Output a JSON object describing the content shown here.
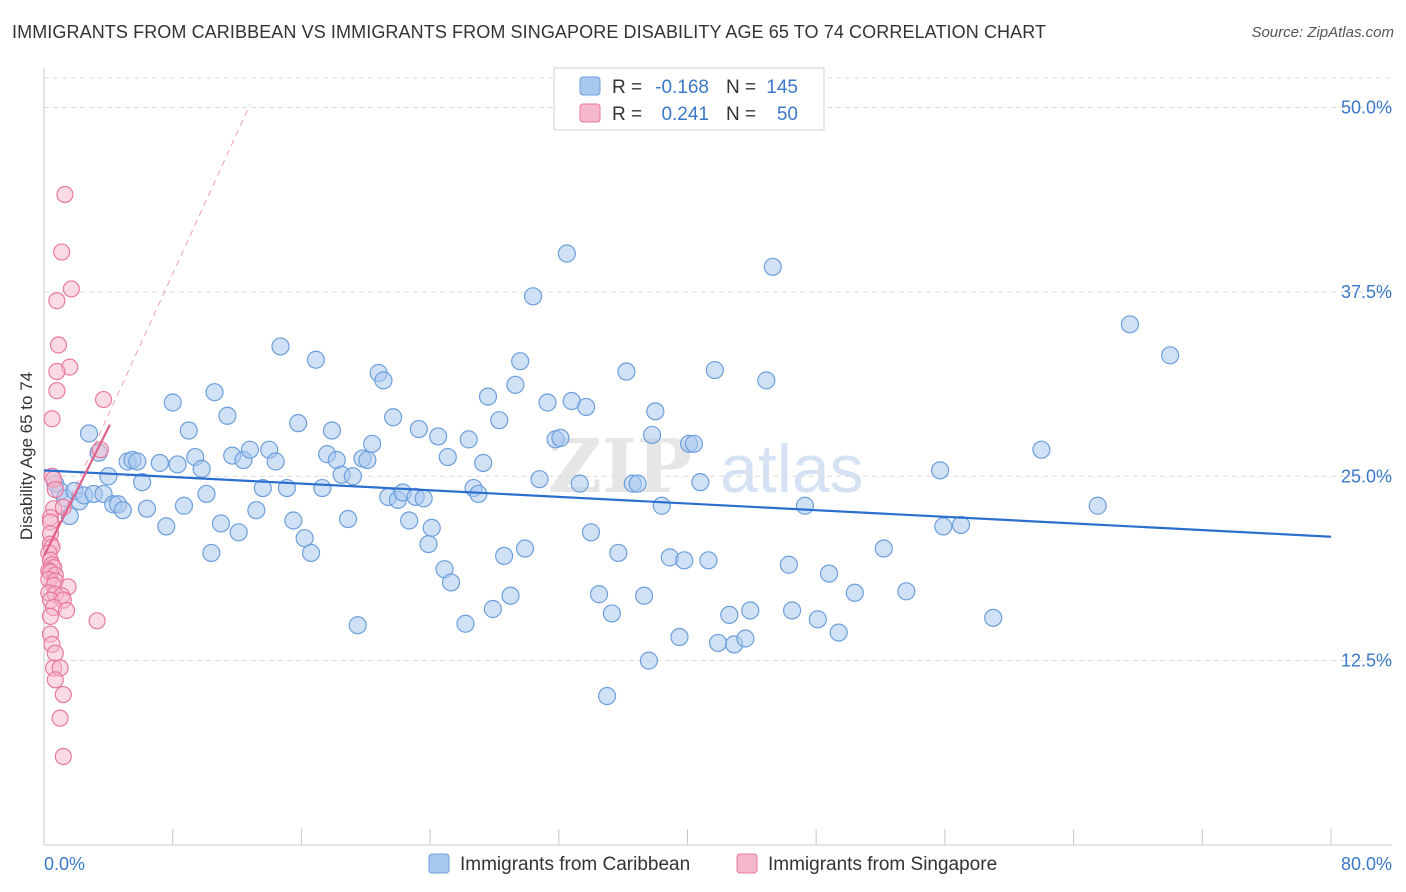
{
  "header": {
    "title": "IMMIGRANTS FROM CARIBBEAN VS IMMIGRANTS FROM SINGAPORE DISABILITY AGE 65 TO 74 CORRELATION CHART",
    "source": "Source: ZipAtlas.com"
  },
  "watermark": {
    "zip": "ZIP",
    "atlas": "atlas"
  },
  "legend_top": {
    "rows": [
      {
        "r_label": "R =",
        "r_value": "-0.168",
        "n_label": "N =",
        "n_value": "145"
      },
      {
        "r_label": "R =",
        "r_value": "0.241",
        "n_label": "N =",
        "n_value": "50"
      }
    ]
  },
  "colors": {
    "blue_fill": "#a9c8ef",
    "blue_stroke": "#6c9fdc",
    "blue_line": "#2b6fce",
    "pink_fill": "#f5b8cb",
    "pink_stroke": "#e8799c",
    "pink_line": "#e0608a",
    "tick_text": "#3a78c9",
    "grid": "#dcdcdc"
  },
  "chart_data": {
    "type": "scatter",
    "title": "IMMIGRANTS FROM CARIBBEAN VS IMMIGRANTS FROM SINGAPORE DISABILITY AGE 65 TO 74 CORRELATION CHART",
    "xlabel": "",
    "ylabel": "Disability Age 65 to 74",
    "xlim": [
      0,
      80
    ],
    "ylim": [
      0,
      52
    ],
    "x_tick_labels": [
      "0.0%",
      "80.0%"
    ],
    "y_ticks": [
      12.5,
      25.0,
      37.5,
      50.0
    ],
    "y_tick_labels": [
      "12.5%",
      "25.0%",
      "37.5%",
      "50.0%"
    ],
    "grid": true,
    "legend": "top-center and bottom",
    "series": [
      {
        "name": "Immigrants from Caribbean",
        "color": "#a9c8ef",
        "trend": {
          "x": [
            0,
            80
          ],
          "y": [
            25.4,
            20.9
          ]
        },
        "points": [
          [
            0.7,
            24.5
          ],
          [
            1.0,
            24.0
          ],
          [
            1.3,
            23.5
          ],
          [
            1.6,
            22.3
          ],
          [
            1.9,
            24.0
          ],
          [
            2.2,
            23.3
          ],
          [
            2.5,
            23.7
          ],
          [
            2.8,
            27.9
          ],
          [
            3.1,
            23.8
          ],
          [
            3.4,
            26.6
          ],
          [
            3.7,
            23.8
          ],
          [
            4.0,
            25.0
          ],
          [
            4.3,
            23.1
          ],
          [
            4.6,
            23.1
          ],
          [
            4.9,
            22.7
          ],
          [
            5.2,
            26.0
          ],
          [
            5.5,
            26.1
          ],
          [
            5.8,
            26.0
          ],
          [
            6.1,
            24.6
          ],
          [
            6.4,
            22.8
          ],
          [
            7.2,
            25.9
          ],
          [
            7.6,
            21.6
          ],
          [
            8.0,
            30.0
          ],
          [
            8.3,
            25.8
          ],
          [
            8.7,
            23.0
          ],
          [
            9.0,
            28.1
          ],
          [
            9.4,
            26.3
          ],
          [
            9.8,
            25.5
          ],
          [
            10.1,
            23.8
          ],
          [
            10.4,
            19.8
          ],
          [
            10.6,
            30.7
          ],
          [
            11.0,
            21.8
          ],
          [
            11.4,
            29.1
          ],
          [
            11.7,
            26.4
          ],
          [
            12.1,
            21.2
          ],
          [
            12.4,
            26.1
          ],
          [
            12.8,
            26.8
          ],
          [
            13.2,
            22.7
          ],
          [
            13.6,
            24.2
          ],
          [
            14.0,
            26.8
          ],
          [
            14.4,
            26.0
          ],
          [
            14.7,
            33.8
          ],
          [
            15.1,
            24.2
          ],
          [
            15.5,
            22.0
          ],
          [
            15.8,
            28.6
          ],
          [
            16.2,
            20.8
          ],
          [
            16.6,
            19.8
          ],
          [
            16.9,
            32.9
          ],
          [
            17.3,
            24.2
          ],
          [
            17.6,
            26.5
          ],
          [
            17.9,
            28.1
          ],
          [
            18.2,
            26.1
          ],
          [
            18.5,
            25.1
          ],
          [
            18.9,
            22.1
          ],
          [
            19.2,
            25.0
          ],
          [
            19.5,
            14.9
          ],
          [
            19.8,
            26.2
          ],
          [
            20.1,
            26.1
          ],
          [
            20.4,
            27.2
          ],
          [
            20.8,
            32.0
          ],
          [
            21.1,
            31.5
          ],
          [
            21.4,
            23.6
          ],
          [
            21.7,
            29.0
          ],
          [
            22.0,
            23.4
          ],
          [
            22.3,
            23.9
          ],
          [
            22.7,
            22.0
          ],
          [
            23.1,
            23.6
          ],
          [
            23.3,
            28.2
          ],
          [
            23.6,
            23.5
          ],
          [
            23.9,
            20.4
          ],
          [
            24.1,
            21.5
          ],
          [
            24.5,
            27.7
          ],
          [
            24.9,
            18.7
          ],
          [
            25.1,
            26.3
          ],
          [
            25.3,
            17.8
          ],
          [
            26.2,
            15.0
          ],
          [
            26.4,
            27.5
          ],
          [
            26.7,
            24.2
          ],
          [
            27.0,
            23.8
          ],
          [
            27.3,
            25.9
          ],
          [
            27.6,
            30.4
          ],
          [
            27.9,
            16.0
          ],
          [
            28.3,
            28.8
          ],
          [
            28.6,
            19.6
          ],
          [
            29.0,
            16.9
          ],
          [
            29.3,
            31.2
          ],
          [
            29.6,
            32.8
          ],
          [
            29.9,
            20.1
          ],
          [
            30.4,
            37.2
          ],
          [
            30.8,
            24.8
          ],
          [
            31.3,
            30.0
          ],
          [
            31.8,
            27.5
          ],
          [
            32.1,
            27.6
          ],
          [
            32.5,
            40.1
          ],
          [
            32.8,
            30.1
          ],
          [
            33.3,
            24.5
          ],
          [
            33.7,
            29.7
          ],
          [
            34.0,
            21.2
          ],
          [
            34.5,
            17.0
          ],
          [
            35.0,
            10.1
          ],
          [
            35.3,
            15.7
          ],
          [
            35.7,
            19.8
          ],
          [
            36.2,
            32.1
          ],
          [
            36.6,
            24.5
          ],
          [
            36.9,
            24.5
          ],
          [
            37.3,
            16.9
          ],
          [
            37.6,
            12.5
          ],
          [
            37.8,
            27.8
          ],
          [
            38.0,
            29.4
          ],
          [
            38.4,
            23.0
          ],
          [
            38.9,
            19.5
          ],
          [
            39.5,
            14.1
          ],
          [
            39.8,
            19.3
          ],
          [
            40.1,
            27.2
          ],
          [
            40.4,
            27.2
          ],
          [
            40.8,
            24.6
          ],
          [
            41.3,
            19.3
          ],
          [
            41.7,
            32.2
          ],
          [
            41.9,
            13.7
          ],
          [
            42.6,
            15.6
          ],
          [
            42.9,
            13.6
          ],
          [
            43.6,
            14.0
          ],
          [
            43.9,
            15.9
          ],
          [
            44.9,
            31.5
          ],
          [
            45.3,
            39.2
          ],
          [
            46.3,
            19.0
          ],
          [
            46.5,
            15.9
          ],
          [
            47.3,
            23.0
          ],
          [
            48.1,
            15.3
          ],
          [
            48.8,
            18.4
          ],
          [
            49.4,
            14.4
          ],
          [
            50.4,
            17.1
          ],
          [
            52.2,
            20.1
          ],
          [
            53.6,
            17.2
          ],
          [
            55.7,
            25.4
          ],
          [
            55.9,
            21.6
          ],
          [
            57.0,
            21.7
          ],
          [
            59.0,
            15.4
          ],
          [
            62.0,
            26.8
          ],
          [
            67.5,
            35.3
          ],
          [
            65.5,
            23.0
          ],
          [
            70.0,
            33.2
          ]
        ]
      },
      {
        "name": "Immigrants from Singapore",
        "color": "#f5b8cb",
        "trend": {
          "x": [
            0,
            4.1
          ],
          "y": [
            19.6,
            28.5
          ]
        },
        "trend_extended": {
          "x": [
            0,
            12.8
          ],
          "y": [
            19.6,
            50.2
          ]
        },
        "points": [
          [
            1.3,
            44.1
          ],
          [
            1.1,
            40.2
          ],
          [
            1.7,
            37.7
          ],
          [
            0.8,
            36.9
          ],
          [
            0.9,
            33.9
          ],
          [
            1.6,
            32.4
          ],
          [
            0.8,
            32.1
          ],
          [
            0.8,
            30.8
          ],
          [
            3.7,
            30.2
          ],
          [
            0.5,
            28.9
          ],
          [
            3.5,
            26.8
          ],
          [
            0.5,
            25.0
          ],
          [
            0.6,
            24.8
          ],
          [
            0.7,
            24.1
          ],
          [
            0.6,
            22.8
          ],
          [
            1.2,
            22.9
          ],
          [
            0.4,
            22.2
          ],
          [
            0.4,
            21.9
          ],
          [
            0.4,
            21.1
          ],
          [
            0.4,
            20.4
          ],
          [
            0.5,
            20.2
          ],
          [
            0.3,
            19.8
          ],
          [
            0.4,
            19.3
          ],
          [
            0.5,
            19.0
          ],
          [
            0.6,
            18.8
          ],
          [
            0.3,
            18.6
          ],
          [
            0.4,
            18.5
          ],
          [
            0.7,
            18.3
          ],
          [
            0.3,
            18.0
          ],
          [
            0.7,
            17.9
          ],
          [
            0.6,
            17.6
          ],
          [
            1.5,
            17.5
          ],
          [
            0.3,
            17.1
          ],
          [
            0.7,
            17.0
          ],
          [
            1.1,
            16.9
          ],
          [
            0.4,
            16.6
          ],
          [
            1.2,
            16.6
          ],
          [
            0.6,
            16.1
          ],
          [
            1.4,
            15.9
          ],
          [
            0.4,
            15.5
          ],
          [
            3.3,
            15.2
          ],
          [
            0.4,
            14.3
          ],
          [
            0.5,
            13.6
          ],
          [
            0.7,
            13.0
          ],
          [
            0.6,
            12.0
          ],
          [
            1.0,
            12.0
          ],
          [
            0.7,
            11.2
          ],
          [
            1.2,
            10.2
          ],
          [
            1.0,
            8.6
          ],
          [
            1.2,
            6.0
          ]
        ]
      }
    ]
  },
  "bottom_legend": {
    "items": [
      {
        "label": "Immigrants from Caribbean"
      },
      {
        "label": "Immigrants from Singapore"
      }
    ]
  }
}
